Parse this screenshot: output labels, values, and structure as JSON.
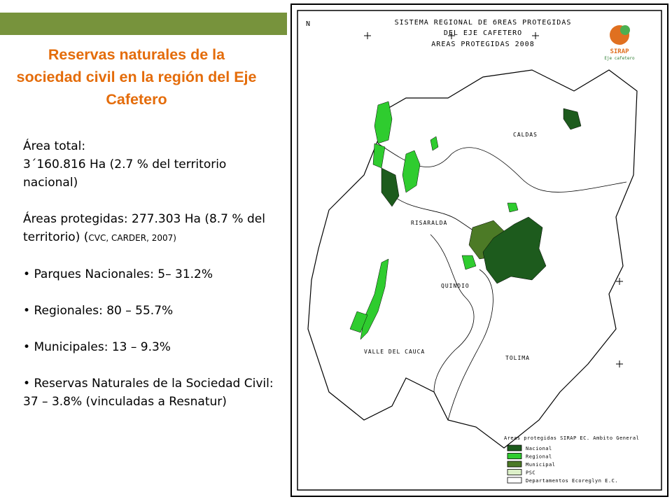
{
  "slide": {
    "title": "Reservas naturales de la sociedad civil en la región del Eje Cafetero",
    "area_total_label": "Área total:",
    "area_total_text": "3´160.816 Ha (2.7 % del territorio nacional)",
    "protected_text": "Áreas protegidas: 277.303 Ha (8.7 % del territorio) (",
    "protected_source": "CVC, CARDER, 2007)",
    "bullets": [
      "Parques Nacionales: 5– 31.2%",
      "Regionales: 80 – 55.7%",
      "Municipales:  13 – 9.3%",
      "Reservas Naturales de la Sociedad Civil: 37 – 3.8% (vinculadas a Resnatur)"
    ]
  },
  "map": {
    "north": "N",
    "title_lines": [
      "SISTEMA REGIONAL DE бREAS PROTEGIDAS",
      "DEL EJE CAFETERO",
      "AREAS PROTEGIDAS 2008"
    ],
    "logo": "SIRAP",
    "logo_sub": "Eje cafetero",
    "regions": [
      "CALDAS",
      "RISARALDA",
      "QUINDIO",
      "VALLE DEL CAUCA",
      "TOLIMA"
    ],
    "legend": {
      "title": "Areas protegidas SIRAP EC. Ambito General",
      "items": [
        {
          "label": "Nacional",
          "color": "#1d5b1d"
        },
        {
          "label": "Regional",
          "color": "#2fcc2f"
        },
        {
          "label": "Municipal",
          "color": "#4c7a26"
        },
        {
          "label": "PSC",
          "color": "#dcefc8"
        },
        {
          "label": "Departamentos Ecoreglуn E.C.",
          "color": "#ffffff"
        }
      ]
    }
  }
}
